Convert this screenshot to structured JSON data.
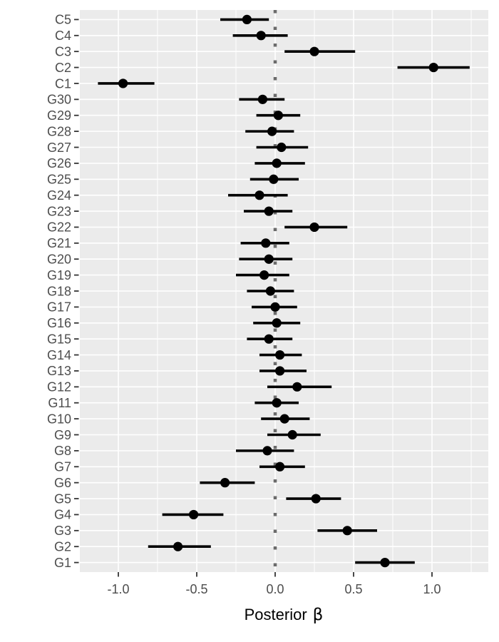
{
  "figure": {
    "xlabel_main": "Posterior",
    "xlabel_symbol": "β"
  },
  "colors": {
    "page_background": "#FFFFFF",
    "panel_background": "#EBEBEB",
    "gridline": "#FFFFFF",
    "zero_line": "#6B6B6B",
    "point_and_interval": "#000000",
    "axis_text": "#4D4D4D",
    "tick_mark": "#333333",
    "axis_title": "#000000"
  },
  "chart_data": {
    "type": "scatter",
    "subtype": "pointrange-forest-plot",
    "orientation": "horizontal",
    "title": "",
    "xlabel": "Posterior β",
    "ylabel": "",
    "xlim": [
      -1.25,
      1.36
    ],
    "x_ticks": [
      -1.0,
      -0.5,
      0.0,
      0.5,
      1.0
    ],
    "x_tick_labels": [
      "-1.0",
      "-0.5",
      "0.0",
      "0.5",
      "1.0"
    ],
    "x_minor_ticks": [
      -1.25,
      -0.75,
      -0.25,
      0.25,
      0.75,
      1.25
    ],
    "grid": "white major/minor vertical gridlines, white horizontal gridline per category, on gray panel",
    "legend": "none",
    "zero_reference_line": {
      "x": 0.0,
      "style": "dotted",
      "color": "#6B6B6B"
    },
    "categories_top_to_bottom": [
      "C5",
      "C4",
      "C3",
      "C2",
      "C1",
      "G30",
      "G29",
      "G28",
      "G27",
      "G26",
      "G25",
      "G24",
      "G23",
      "G22",
      "G21",
      "G20",
      "G19",
      "G18",
      "G17",
      "G16",
      "G15",
      "G14",
      "G13",
      "G12",
      "G11",
      "G10",
      "G9",
      "G8",
      "G7",
      "G6",
      "G5",
      "G4",
      "G3",
      "G2",
      "G1"
    ],
    "rows": [
      {
        "label": "C5",
        "estimate": -0.18,
        "lower": -0.35,
        "upper": -0.04
      },
      {
        "label": "C4",
        "estimate": -0.09,
        "lower": -0.27,
        "upper": 0.08
      },
      {
        "label": "C3",
        "estimate": 0.25,
        "lower": 0.06,
        "upper": 0.51
      },
      {
        "label": "C2",
        "estimate": 1.01,
        "lower": 0.78,
        "upper": 1.24
      },
      {
        "label": "C1",
        "estimate": -0.97,
        "lower": -1.13,
        "upper": -0.77
      },
      {
        "label": "G30",
        "estimate": -0.08,
        "lower": -0.23,
        "upper": 0.06
      },
      {
        "label": "G29",
        "estimate": 0.02,
        "lower": -0.12,
        "upper": 0.16
      },
      {
        "label": "G28",
        "estimate": -0.02,
        "lower": -0.19,
        "upper": 0.12
      },
      {
        "label": "G27",
        "estimate": 0.04,
        "lower": -0.12,
        "upper": 0.21
      },
      {
        "label": "G26",
        "estimate": 0.01,
        "lower": -0.13,
        "upper": 0.19
      },
      {
        "label": "G25",
        "estimate": -0.01,
        "lower": -0.16,
        "upper": 0.15
      },
      {
        "label": "G24",
        "estimate": -0.1,
        "lower": -0.3,
        "upper": 0.08
      },
      {
        "label": "G23",
        "estimate": -0.04,
        "lower": -0.2,
        "upper": 0.11
      },
      {
        "label": "G22",
        "estimate": 0.25,
        "lower": 0.06,
        "upper": 0.46
      },
      {
        "label": "G21",
        "estimate": -0.06,
        "lower": -0.22,
        "upper": 0.09
      },
      {
        "label": "G20",
        "estimate": -0.04,
        "lower": -0.23,
        "upper": 0.11
      },
      {
        "label": "G19",
        "estimate": -0.07,
        "lower": -0.25,
        "upper": 0.09
      },
      {
        "label": "G18",
        "estimate": -0.03,
        "lower": -0.18,
        "upper": 0.12
      },
      {
        "label": "G17",
        "estimate": 0.0,
        "lower": -0.15,
        "upper": 0.14
      },
      {
        "label": "G16",
        "estimate": 0.01,
        "lower": -0.14,
        "upper": 0.16
      },
      {
        "label": "G15",
        "estimate": -0.04,
        "lower": -0.18,
        "upper": 0.11
      },
      {
        "label": "G14",
        "estimate": 0.03,
        "lower": -0.1,
        "upper": 0.17
      },
      {
        "label": "G13",
        "estimate": 0.03,
        "lower": -0.1,
        "upper": 0.2
      },
      {
        "label": "G12",
        "estimate": 0.14,
        "lower": -0.05,
        "upper": 0.36
      },
      {
        "label": "G11",
        "estimate": 0.01,
        "lower": -0.13,
        "upper": 0.15
      },
      {
        "label": "G10",
        "estimate": 0.06,
        "lower": -0.09,
        "upper": 0.22
      },
      {
        "label": "G9",
        "estimate": 0.11,
        "lower": -0.05,
        "upper": 0.29
      },
      {
        "label": "G8",
        "estimate": -0.05,
        "lower": -0.25,
        "upper": 0.12
      },
      {
        "label": "G7",
        "estimate": 0.03,
        "lower": -0.1,
        "upper": 0.19
      },
      {
        "label": "G6",
        "estimate": -0.32,
        "lower": -0.48,
        "upper": -0.13
      },
      {
        "label": "G5",
        "estimate": 0.26,
        "lower": 0.07,
        "upper": 0.42
      },
      {
        "label": "G4",
        "estimate": -0.52,
        "lower": -0.72,
        "upper": -0.33
      },
      {
        "label": "G3",
        "estimate": 0.46,
        "lower": 0.27,
        "upper": 0.65
      },
      {
        "label": "G2",
        "estimate": -0.62,
        "lower": -0.81,
        "upper": -0.41
      },
      {
        "label": "G1",
        "estimate": 0.7,
        "lower": 0.51,
        "upper": 0.89
      }
    ]
  }
}
